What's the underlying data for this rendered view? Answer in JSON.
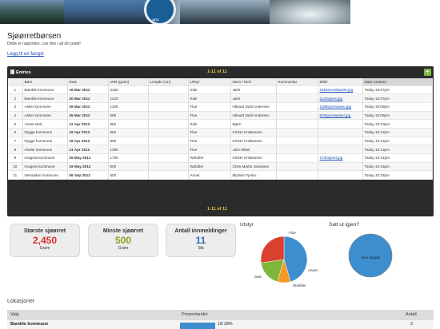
{
  "header": {
    "title": "Sjøørretbørsen",
    "subtitle": "Dette er rapporten. Les den i all sin prakt!",
    "add_link": "Legg til en fangst",
    "logo_year": "1871"
  },
  "entries": {
    "label": "Entries",
    "count_top": "1-11 of 11",
    "count_bottom": "1-11 of 11",
    "add_button": "+",
    "columns": [
      "",
      "Børs",
      "Date",
      "Vekt (gram)",
      "Lengde (cm)",
      "Utstyr",
      "Navn / Nick",
      "Kommentar",
      "Bilde",
      "Date Created"
    ],
    "rows": [
      {
        "n": "1",
        "bors": "Bamble kommune",
        "date": "16 Mar 2012",
        "vekt": "2450",
        "lengde": "",
        "utstyr": "Sluk",
        "navn": "Jarle",
        "kommentar": "",
        "bilde": "2450sorretbamle.jpg",
        "created": "Today 10:07pm"
      },
      {
        "n": "2",
        "bors": "Bamble kommune",
        "date": "20 Mar 2012",
        "vekt": "1120",
        "lengde": "",
        "utstyr": "Sluk",
        "navn": "Jarle",
        "kommentar": "",
        "bilde": "1120sjoret.jpg",
        "created": "Today 10:07pm"
      },
      {
        "n": "3",
        "bors": "Asker kommune",
        "date": "26 Mar 2012",
        "vekt": "1198",
        "lengde": "",
        "utstyr": "Flue",
        "navn": "Håvard Dahl Andersen",
        "kommentar": "",
        "bilde": "1198sjoretasker.jpg",
        "created": "Today 10:08pm"
      },
      {
        "n": "4",
        "bors": "Asker kommune",
        "date": "26 Mar 2012",
        "vekt": "500",
        "lengde": "",
        "utstyr": "Flue",
        "navn": "Håvard Dahl Andersen",
        "kommentar": "",
        "bilde": "500sjorretasker.jpg",
        "created": "Today 10:09pm"
      },
      {
        "n": "5",
        "bors": "Annet sted",
        "date": "12 Apr 2012",
        "vekt": "550",
        "lengde": "",
        "utstyr": "Sluk",
        "navn": "Bjørn",
        "kommentar": "",
        "bilde": "",
        "created": "Today 10:10pm"
      },
      {
        "n": "6",
        "bors": "Rygge kommune",
        "date": "19 Apr 2012",
        "vekt": "650",
        "lengde": "",
        "utstyr": "Flue",
        "navn": "Krister Kristiansen",
        "kommentar": "",
        "bilde": "",
        "created": "Today 10:12pm"
      },
      {
        "n": "7",
        "bors": "Rygge kommune",
        "date": "19 Apr 2012",
        "vekt": "800",
        "lengde": "",
        "utstyr": "Flue",
        "navn": "Krister Kristiansen",
        "kommentar": "",
        "bilde": "",
        "created": "Today 10:12pm"
      },
      {
        "n": "8",
        "bors": "Hvaler kommune",
        "date": "21 Apr 2012",
        "vekt": "1300",
        "lengde": "",
        "utstyr": "Flue",
        "navn": "Julie Mittet",
        "kommentar": "",
        "bilde": "",
        "created": "Today 10:13pm"
      },
      {
        "n": "9",
        "bors": "Kragerø kommune",
        "date": "29 May 2012",
        "vekt": "1700",
        "lengde": "",
        "utstyr": "Wobbler",
        "navn": "Krister Kristiansen",
        "kommentar": "",
        "bilde": "1700sjoret.jpg",
        "created": "Today 10:14pm"
      },
      {
        "n": "10",
        "bors": "Kragerø kommune",
        "date": "19 May 2012",
        "vekt": "800",
        "lengde": "",
        "utstyr": "Wobbler",
        "navn": "Chris Martin Johansen",
        "kommentar": "",
        "bilde": "",
        "created": "Today 10:16pm"
      },
      {
        "n": "11",
        "bors": "Nesodden kommune",
        "date": "06 Sep 2012",
        "vekt": "500",
        "lengde": "",
        "utstyr": "Annet",
        "navn": "Øystein Fjerbu",
        "kommentar": "",
        "bilde": "",
        "created": "Today 10:18pm"
      }
    ]
  },
  "stats": [
    {
      "title": "Største sjøørret",
      "value": "2,450",
      "unit": "Gram",
      "color": "#d9312b"
    },
    {
      "title": "Minste sjøørret",
      "value": "500",
      "unit": "Gram",
      "color": "#8aa11c"
    },
    {
      "title": "Antall innmeldinger",
      "value": "11",
      "unit": "Stk",
      "color": "#2f6fae"
    }
  ],
  "utstyr_chart": {
    "title": "Utstyr",
    "labels": {
      "flue": "Flue",
      "annet": "Annet",
      "wobbler": "Wobbler",
      "sluk": "Sluk"
    }
  },
  "satt_chart": {
    "title": "Satt ut igjen?",
    "label": "Ikke oppgitt"
  },
  "chart_data": [
    {
      "type": "pie",
      "title": "Utstyr",
      "categories": [
        "Flue",
        "Annet",
        "Wobbler",
        "Sluk"
      ],
      "values": [
        5,
        1,
        2,
        3
      ],
      "colors": [
        "#3d8ecf",
        "#f49a24",
        "#7fb539",
        "#d9412e"
      ]
    },
    {
      "type": "pie",
      "title": "Satt ut igjen?",
      "categories": [
        "Ikke oppgitt"
      ],
      "values": [
        11
      ],
      "colors": [
        "#3d8ecf"
      ]
    }
  ],
  "lokasjoner": {
    "title": "Lokasjoner",
    "columns": [
      "Valg",
      "Prosentandel",
      "Antall"
    ],
    "rows": [
      {
        "valg": "Bamble kommune",
        "pct": "18.18%",
        "pct_value": 18.18,
        "antall": "2"
      }
    ]
  }
}
